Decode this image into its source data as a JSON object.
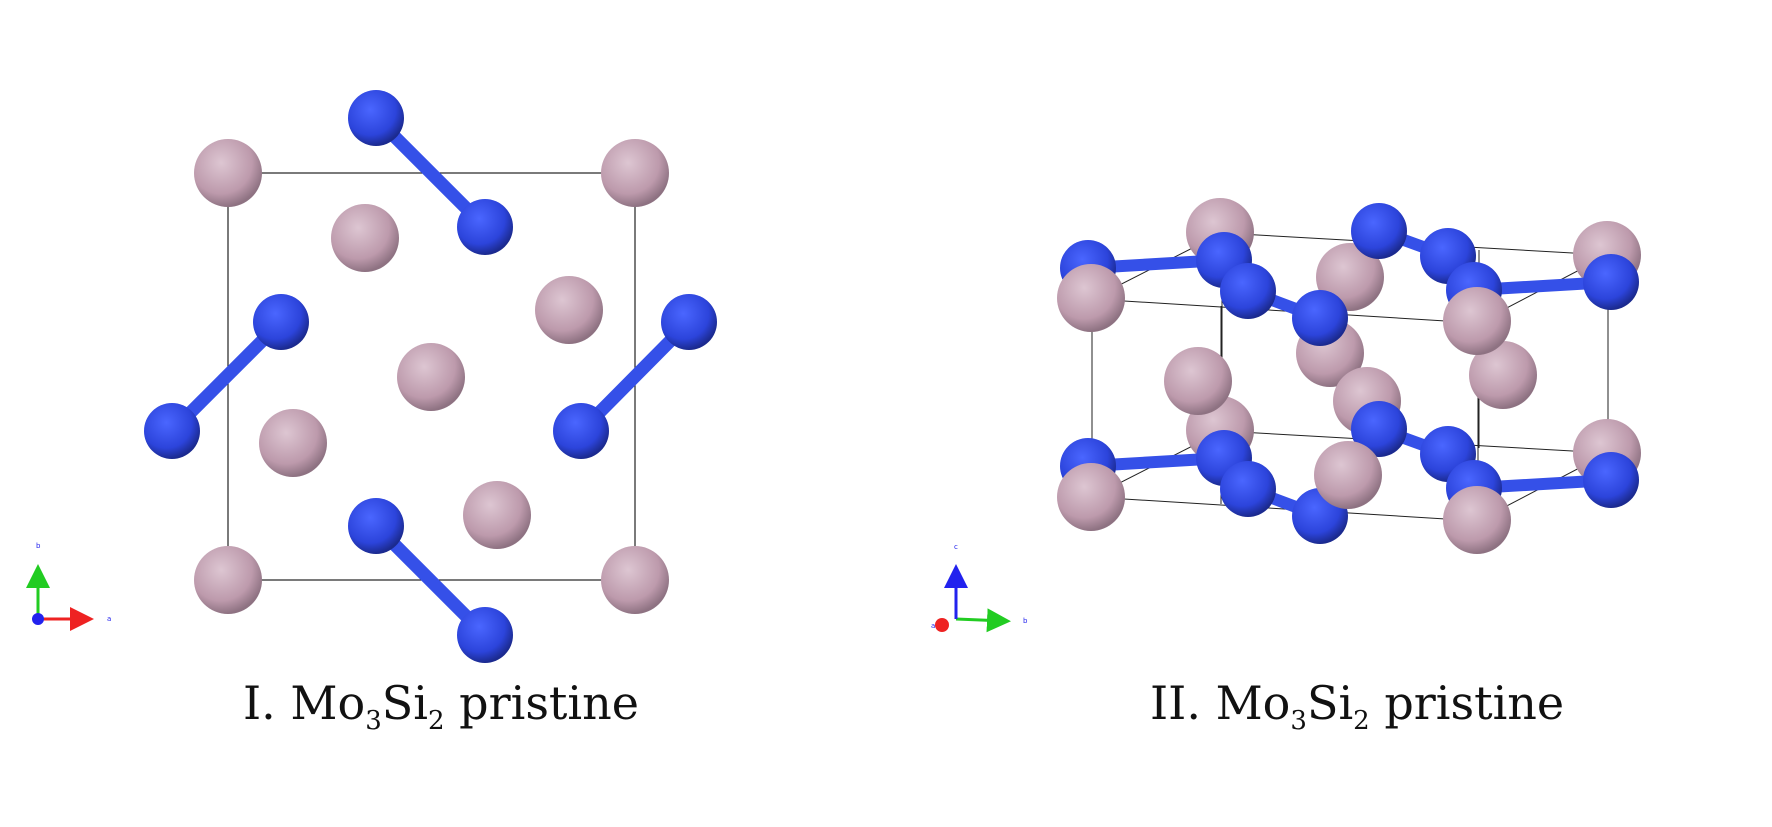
{
  "panels": [
    {
      "caption": {
        "prefix": "I. Mo",
        "sub1": "3",
        "mid": "Si",
        "sub2": "2",
        "suffix": " pristine"
      },
      "axes": {
        "horizontal": "a",
        "vertical": "b"
      }
    },
    {
      "caption": {
        "prefix": "II. Mo",
        "sub1": "3",
        "mid": "Si",
        "sub2": "2",
        "suffix": " pristine"
      },
      "axes": {
        "horizontal": "b",
        "vertical": "c",
        "out_of_plane": "a"
      }
    }
  ],
  "colors": {
    "mo_atom": "#c9a9b9",
    "si_atom": "#2f48e0",
    "bond": "#3550e8",
    "axis_x": "#ee2222",
    "axis_y": "#22cc22",
    "axis_z": "#2222ee",
    "cell_edge": "#222222"
  }
}
